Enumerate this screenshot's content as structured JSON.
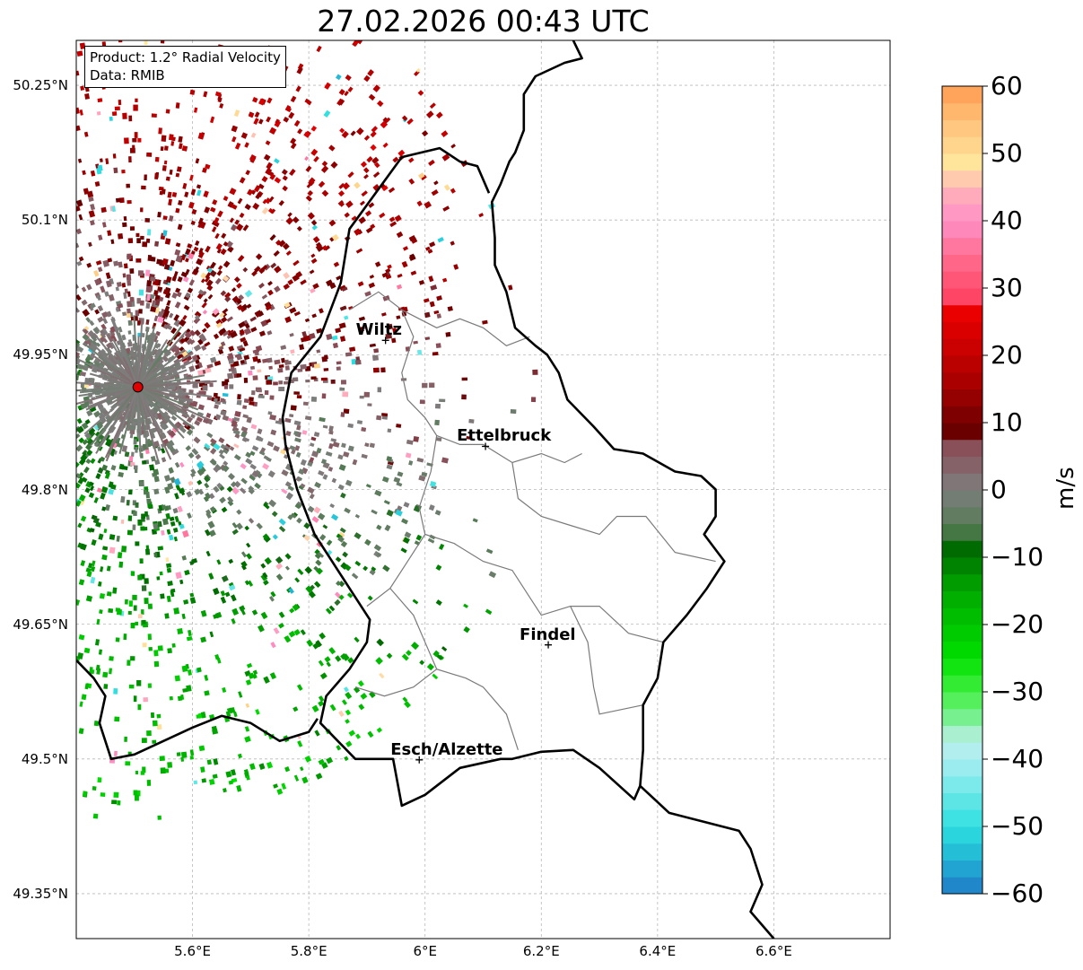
{
  "title": "27.02.2026 00:43 UTC",
  "info": {
    "product": "Product: 1.2° Radial Velocity",
    "source": "Data: RMIB"
  },
  "axes": {
    "y_ticks": [
      {
        "value": 50.25,
        "label": "50.25°N"
      },
      {
        "value": 50.1,
        "label": "50.1°N"
      },
      {
        "value": 49.95,
        "label": "49.95°N"
      },
      {
        "value": 49.8,
        "label": "49.8°N"
      },
      {
        "value": 49.65,
        "label": "49.65°N"
      },
      {
        "value": 49.5,
        "label": "49.5°N"
      },
      {
        "value": 49.35,
        "label": "49.35°N"
      }
    ],
    "x_ticks": [
      {
        "value": 5.6,
        "label": "5.6°E"
      },
      {
        "value": 5.8,
        "label": "5.8°E"
      },
      {
        "value": 6.0,
        "label": "6°E"
      },
      {
        "value": 6.2,
        "label": "6.2°E"
      },
      {
        "value": 6.4,
        "label": "6.4°E"
      },
      {
        "value": 6.6,
        "label": "6.6°E"
      }
    ],
    "lon_range": [
      5.4,
      6.8
    ],
    "lat_range": [
      49.3,
      50.3
    ],
    "grid": true
  },
  "radar_site": {
    "lon": 5.506,
    "lat": 49.914
  },
  "cities": [
    {
      "name": "Wiltz",
      "lon": 5.932,
      "lat": 49.966
    },
    {
      "name": "Ettelbruck",
      "lon": 6.104,
      "lat": 49.848
    },
    {
      "name": "Findel",
      "lon": 6.212,
      "lat": 49.627
    },
    {
      "name": "Esch/Alzette",
      "lon": 5.99,
      "lat": 49.499
    }
  ],
  "colorbar": {
    "label": "m/s",
    "vmin": -60,
    "vmax": 60,
    "ticks": [
      {
        "value": 60,
        "label": "60"
      },
      {
        "value": 50,
        "label": "50"
      },
      {
        "value": 40,
        "label": "40"
      },
      {
        "value": 30,
        "label": "30"
      },
      {
        "value": 20,
        "label": "20"
      },
      {
        "value": 10,
        "label": "10"
      },
      {
        "value": 0,
        "label": "0"
      },
      {
        "value": -10,
        "label": "−10"
      },
      {
        "value": -20,
        "label": "−20"
      },
      {
        "value": -30,
        "label": "−30"
      },
      {
        "value": -40,
        "label": "−40"
      },
      {
        "value": -50,
        "label": "−50"
      },
      {
        "value": -60,
        "label": "−60"
      }
    ],
    "stops": [
      {
        "v": -60,
        "color": "#1f78c8"
      },
      {
        "v": -55,
        "color": "#22b2d4"
      },
      {
        "v": -50,
        "color": "#2ee0e0"
      },
      {
        "v": -40,
        "color": "#aaeef0"
      },
      {
        "v": -37,
        "color": "#bdeee8"
      },
      {
        "v": -35,
        "color": "#88f0a8"
      },
      {
        "v": -30,
        "color": "#44ee44"
      },
      {
        "v": -25,
        "color": "#00e000"
      },
      {
        "v": -15,
        "color": "#00a800"
      },
      {
        "v": -8,
        "color": "#006400"
      },
      {
        "v": -6,
        "color": "#4f7a4f"
      },
      {
        "v": 0,
        "color": "#7e7e7e"
      },
      {
        "v": 7,
        "color": "#8a4a54"
      },
      {
        "v": 8,
        "color": "#640000"
      },
      {
        "v": 17,
        "color": "#b00000"
      },
      {
        "v": 27,
        "color": "#f00000"
      },
      {
        "v": 28,
        "color": "#ff4060"
      },
      {
        "v": 35,
        "color": "#ff6e90"
      },
      {
        "v": 40,
        "color": "#ff90c8"
      },
      {
        "v": 45,
        "color": "#ffb4b8"
      },
      {
        "v": 48,
        "color": "#ffe8a0"
      },
      {
        "v": 55,
        "color": "#ffc078"
      },
      {
        "v": 60,
        "color": "#ff9a50"
      }
    ]
  },
  "borders": {
    "national": [
      [
        [
          6.255,
          50.3
        ],
        [
          6.27,
          50.28
        ],
        [
          6.24,
          50.275
        ],
        [
          6.19,
          50.26
        ],
        [
          6.17,
          50.24
        ],
        [
          6.17,
          50.2
        ],
        [
          6.155,
          50.175
        ],
        [
          6.145,
          50.165
        ],
        [
          6.13,
          50.14
        ],
        [
          6.115,
          50.12
        ],
        [
          6.12,
          50.08
        ],
        [
          6.12,
          50.05
        ],
        [
          6.14,
          50.02
        ],
        [
          6.155,
          49.98
        ],
        [
          6.19,
          49.96
        ],
        [
          6.21,
          49.95
        ],
        [
          6.23,
          49.93
        ],
        [
          6.245,
          49.9
        ],
        [
          6.29,
          49.87
        ],
        [
          6.325,
          49.845
        ],
        [
          6.375,
          49.84
        ],
        [
          6.43,
          49.82
        ],
        [
          6.475,
          49.815
        ],
        [
          6.5,
          49.8
        ],
        [
          6.5,
          49.77
        ],
        [
          6.48,
          49.75
        ],
        [
          6.515,
          49.72
        ],
        [
          6.485,
          49.69
        ],
        [
          6.45,
          49.66
        ],
        [
          6.41,
          49.63
        ],
        [
          6.4,
          49.59
        ],
        [
          6.375,
          49.56
        ],
        [
          6.375,
          49.51
        ],
        [
          6.37,
          49.47
        ],
        [
          6.36,
          49.455
        ],
        [
          6.3,
          49.49
        ],
        [
          6.255,
          49.51
        ],
        [
          6.2,
          49.508
        ],
        [
          6.15,
          49.5
        ],
        [
          6.13,
          49.5
        ],
        [
          6.06,
          49.49
        ],
        [
          6.0,
          49.46
        ],
        [
          5.96,
          49.448
        ],
        [
          5.945,
          49.5
        ],
        [
          5.88,
          49.5
        ],
        [
          5.85,
          49.52
        ],
        [
          5.82,
          49.54
        ],
        [
          5.83,
          49.57
        ],
        [
          5.87,
          49.6
        ],
        [
          5.9,
          49.63
        ],
        [
          5.905,
          49.655
        ],
        [
          5.87,
          49.69
        ],
        [
          5.84,
          49.72
        ],
        [
          5.81,
          49.75
        ],
        [
          5.78,
          49.8
        ],
        [
          5.76,
          49.85
        ],
        [
          5.755,
          49.88
        ],
        [
          5.77,
          49.93
        ],
        [
          5.82,
          49.97
        ],
        [
          5.855,
          50.03
        ],
        [
          5.87,
          50.09
        ],
        [
          5.96,
          50.17
        ],
        [
          6.025,
          50.18
        ],
        [
          6.06,
          50.165
        ],
        [
          6.09,
          50.16
        ],
        [
          6.11,
          50.13
        ]
      ]
    ],
    "belgium_france": [
      [
        [
          5.4,
          49.61
        ],
        [
          5.43,
          49.59
        ],
        [
          5.45,
          49.57
        ],
        [
          5.44,
          49.54
        ],
        [
          5.46,
          49.5
        ],
        [
          5.5,
          49.505
        ],
        [
          5.55,
          49.52
        ],
        [
          5.6,
          49.535
        ],
        [
          5.65,
          49.548
        ],
        [
          5.7,
          49.54
        ],
        [
          5.75,
          49.52
        ],
        [
          5.8,
          49.53
        ],
        [
          5.815,
          49.545
        ]
      ]
    ],
    "germany_france": [
      [
        [
          6.37,
          49.47
        ],
        [
          6.42,
          49.44
        ],
        [
          6.48,
          49.43
        ],
        [
          6.54,
          49.42
        ],
        [
          6.56,
          49.4
        ],
        [
          6.58,
          49.36
        ],
        [
          6.56,
          49.33
        ],
        [
          6.6,
          49.3
        ]
      ]
    ],
    "cantons": [
      [
        [
          5.87,
          50.0
        ],
        [
          5.92,
          50.02
        ],
        [
          5.96,
          50.0
        ],
        [
          5.98,
          49.97
        ],
        [
          5.96,
          49.93
        ],
        [
          5.97,
          49.9
        ],
        [
          6.0,
          49.88
        ],
        [
          6.02,
          49.86
        ],
        [
          6.01,
          49.82
        ],
        [
          5.99,
          49.78
        ],
        [
          6.0,
          49.75
        ],
        [
          5.97,
          49.72
        ],
        [
          5.94,
          49.69
        ],
        [
          5.9,
          49.67
        ]
      ],
      [
        [
          5.96,
          50.0
        ],
        [
          6.02,
          49.98
        ],
        [
          6.06,
          49.99
        ],
        [
          6.1,
          49.98
        ],
        [
          6.14,
          49.96
        ],
        [
          6.18,
          49.97
        ]
      ],
      [
        [
          6.02,
          49.86
        ],
        [
          6.06,
          49.85
        ],
        [
          6.1,
          49.85
        ],
        [
          6.15,
          49.83
        ],
        [
          6.2,
          49.84
        ],
        [
          6.24,
          49.83
        ],
        [
          6.27,
          49.84
        ]
      ],
      [
        [
          6.15,
          49.83
        ],
        [
          6.16,
          49.79
        ],
        [
          6.2,
          49.77
        ],
        [
          6.25,
          49.76
        ],
        [
          6.3,
          49.75
        ],
        [
          6.33,
          49.77
        ],
        [
          6.38,
          49.77
        ],
        [
          6.43,
          49.73
        ],
        [
          6.5,
          49.72
        ]
      ],
      [
        [
          6.0,
          49.75
        ],
        [
          6.05,
          49.74
        ],
        [
          6.1,
          49.72
        ],
        [
          6.15,
          49.71
        ],
        [
          6.18,
          49.68
        ],
        [
          6.2,
          49.66
        ],
        [
          6.25,
          49.67
        ],
        [
          6.3,
          49.67
        ],
        [
          6.35,
          49.64
        ],
        [
          6.41,
          49.63
        ]
      ],
      [
        [
          5.94,
          49.69
        ],
        [
          5.98,
          49.66
        ],
        [
          6.0,
          49.63
        ],
        [
          6.02,
          49.6
        ],
        [
          6.07,
          49.59
        ],
        [
          6.1,
          49.58
        ],
        [
          6.14,
          49.55
        ],
        [
          6.16,
          49.51
        ]
      ],
      [
        [
          6.25,
          49.67
        ],
        [
          6.28,
          49.63
        ],
        [
          6.29,
          49.58
        ],
        [
          6.3,
          49.55
        ],
        [
          6.375,
          49.56
        ]
      ],
      [
        [
          5.88,
          49.58
        ],
        [
          5.93,
          49.57
        ],
        [
          5.98,
          49.58
        ],
        [
          6.02,
          49.6
        ]
      ]
    ]
  }
}
